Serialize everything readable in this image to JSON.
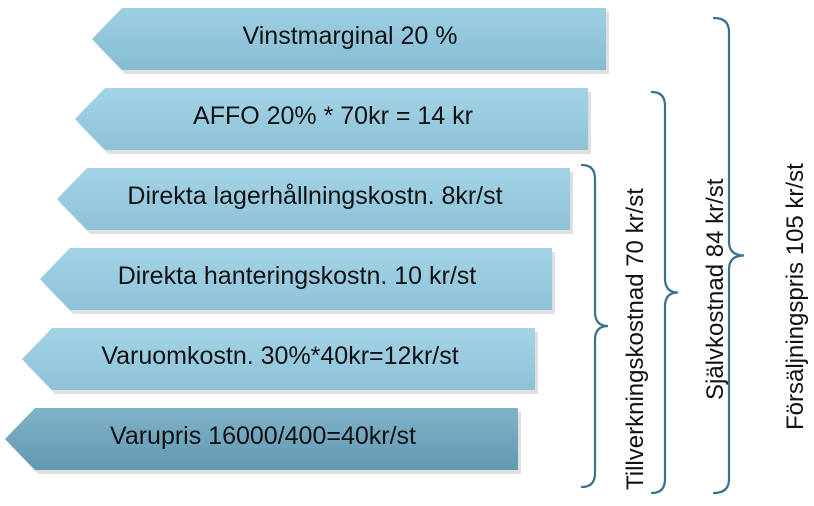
{
  "rows": [
    {
      "label": "Vinstmarginal 20 %",
      "color_top": "#9cd0e3",
      "color_bottom": "#86bcd3"
    },
    {
      "label": "AFFO 20% * 70kr = 14 kr",
      "color_top": "#a3d4e6",
      "color_bottom": "#8dc2d8"
    },
    {
      "label": "Direkta lagerhållningskostn. 8kr/st",
      "color_top": "#a3d4e6",
      "color_bottom": "#8dc2d8"
    },
    {
      "label": "Direkta hanteringskostn. 10 kr/st",
      "color_top": "#a3d4e6",
      "color_bottom": "#8dc2d8"
    },
    {
      "label": "Varuomkostn. 30%*40kr=12kr/st",
      "color_top": "#a3d4e6",
      "color_bottom": "#8dc2d8"
    },
    {
      "label": "Varupris 16000/400=40kr/st",
      "color_top": "#7fb3c9",
      "color_bottom": "#6199b2"
    }
  ],
  "brackets": [
    {
      "label": "Tillverkningskostnad 70 kr/st"
    },
    {
      "label": "Självkostnad 84 kr/st"
    },
    {
      "label": "Försäljningspris 105 kr/st"
    }
  ],
  "bracket_color": "#3b6f8c",
  "shadow_color": "#c5c5c5"
}
